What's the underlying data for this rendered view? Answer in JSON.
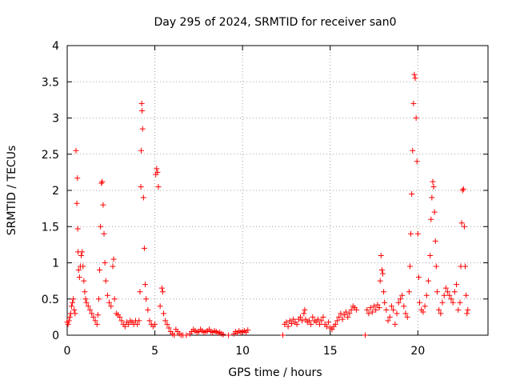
{
  "chart_data": {
    "type": "scatter",
    "title": "Day 295 of 2024, SRMTID for receiver san0",
    "xlabel": "GPS time / hours",
    "ylabel": "SRMTID / TECUs",
    "xlim": [
      0,
      24
    ],
    "ylim": [
      0,
      4
    ],
    "xticks": [
      0,
      5,
      10,
      15,
      20
    ],
    "xtick_labels": [
      "0",
      "5",
      "10",
      "15",
      "20"
    ],
    "yticks": [
      0,
      0.5,
      1,
      1.5,
      2,
      2.5,
      3,
      3.5,
      4
    ],
    "ytick_labels": [
      "0",
      "0.5",
      "1",
      "1.5",
      "2",
      "2.5",
      "3",
      "3.5",
      "4"
    ],
    "grid": true,
    "marker": "+",
    "color": "#ff0000",
    "series": [
      {
        "name": "SRMTID",
        "points": [
          [
            0.0,
            0.18
          ],
          [
            0.05,
            0.15
          ],
          [
            0.1,
            0.2
          ],
          [
            0.15,
            0.25
          ],
          [
            0.2,
            0.3
          ],
          [
            0.25,
            0.4
          ],
          [
            0.3,
            0.45
          ],
          [
            0.35,
            0.5
          ],
          [
            0.4,
            0.35
          ],
          [
            0.45,
            0.3
          ],
          [
            0.5,
            2.55
          ],
          [
            0.55,
            1.82
          ],
          [
            0.58,
            2.17
          ],
          [
            0.6,
            1.47
          ],
          [
            0.62,
            1.15
          ],
          [
            0.65,
            0.9
          ],
          [
            0.7,
            0.8
          ],
          [
            0.75,
            0.95
          ],
          [
            0.8,
            1.1
          ],
          [
            0.85,
            1.15
          ],
          [
            0.9,
            0.95
          ],
          [
            0.95,
            0.75
          ],
          [
            1.0,
            0.6
          ],
          [
            1.05,
            0.5
          ],
          [
            1.1,
            0.45
          ],
          [
            1.2,
            0.4
          ],
          [
            1.3,
            0.35
          ],
          [
            1.4,
            0.3
          ],
          [
            1.5,
            0.25
          ],
          [
            1.6,
            0.2
          ],
          [
            1.7,
            0.15
          ],
          [
            1.75,
            0.28
          ],
          [
            1.8,
            0.5
          ],
          [
            1.85,
            0.9
          ],
          [
            1.9,
            1.5
          ],
          [
            1.95,
            2.1
          ],
          [
            2.0,
            2.12
          ],
          [
            2.05,
            1.8
          ],
          [
            2.1,
            1.4
          ],
          [
            2.15,
            1.0
          ],
          [
            2.2,
            0.75
          ],
          [
            2.3,
            0.55
          ],
          [
            2.4,
            0.45
          ],
          [
            2.5,
            0.4
          ],
          [
            2.6,
            0.95
          ],
          [
            2.65,
            1.05
          ],
          [
            2.7,
            0.5
          ],
          [
            2.8,
            0.3
          ],
          [
            2.9,
            0.28
          ],
          [
            3.0,
            0.25
          ],
          [
            3.1,
            0.2
          ],
          [
            3.2,
            0.15
          ],
          [
            3.3,
            0.12
          ],
          [
            3.4,
            0.18
          ],
          [
            3.5,
            0.15
          ],
          [
            3.6,
            0.2
          ],
          [
            3.7,
            0.18
          ],
          [
            3.8,
            0.15
          ],
          [
            3.9,
            0.2
          ],
          [
            4.0,
            0.15
          ],
          [
            4.1,
            0.2
          ],
          [
            4.15,
            0.6
          ],
          [
            4.2,
            2.05
          ],
          [
            4.22,
            2.55
          ],
          [
            4.25,
            3.2
          ],
          [
            4.27,
            3.1
          ],
          [
            4.3,
            2.85
          ],
          [
            4.35,
            1.9
          ],
          [
            4.4,
            1.2
          ],
          [
            4.45,
            0.7
          ],
          [
            4.5,
            0.5
          ],
          [
            4.6,
            0.35
          ],
          [
            4.7,
            0.2
          ],
          [
            4.8,
            0.15
          ],
          [
            4.9,
            0.12
          ],
          [
            5.0,
            0.15
          ],
          [
            5.05,
            2.22
          ],
          [
            5.1,
            2.3
          ],
          [
            5.15,
            2.25
          ],
          [
            5.2,
            2.05
          ],
          [
            5.3,
            0.4
          ],
          [
            5.4,
            0.65
          ],
          [
            5.45,
            0.6
          ],
          [
            5.5,
            0.3
          ],
          [
            5.6,
            0.2
          ],
          [
            5.7,
            0.15
          ],
          [
            5.8,
            0.1
          ],
          [
            5.9,
            0.05
          ],
          [
            6.0,
            0.02
          ],
          [
            6.1,
            0.0
          ],
          [
            6.2,
            0.08
          ],
          [
            6.3,
            0.05
          ],
          [
            6.4,
            0.02
          ],
          [
            6.5,
            0.0
          ],
          [
            6.6,
            0.0
          ],
          [
            6.8,
            0.0
          ],
          [
            7.0,
            0.02
          ],
          [
            7.1,
            0.05
          ],
          [
            7.2,
            0.08
          ],
          [
            7.3,
            0.06
          ],
          [
            7.4,
            0.04
          ],
          [
            7.5,
            0.05
          ],
          [
            7.6,
            0.08
          ],
          [
            7.7,
            0.06
          ],
          [
            7.8,
            0.04
          ],
          [
            7.9,
            0.05
          ],
          [
            8.0,
            0.06
          ],
          [
            8.1,
            0.08
          ],
          [
            8.2,
            0.05
          ],
          [
            8.3,
            0.04
          ],
          [
            8.4,
            0.06
          ],
          [
            8.5,
            0.05
          ],
          [
            8.6,
            0.03
          ],
          [
            8.7,
            0.04
          ],
          [
            8.8,
            0.02
          ],
          [
            8.9,
            0.01
          ],
          [
            9.2,
            0.0
          ],
          [
            9.5,
            0.02
          ],
          [
            9.6,
            0.05
          ],
          [
            9.7,
            0.03
          ],
          [
            9.8,
            0.06
          ],
          [
            9.9,
            0.04
          ],
          [
            10.0,
            0.05
          ],
          [
            10.1,
            0.06
          ],
          [
            10.2,
            0.04
          ],
          [
            10.3,
            0.07
          ],
          [
            12.3,
            0.0
          ],
          [
            12.4,
            0.15
          ],
          [
            12.5,
            0.18
          ],
          [
            12.6,
            0.12
          ],
          [
            12.7,
            0.2
          ],
          [
            12.8,
            0.16
          ],
          [
            12.9,
            0.22
          ],
          [
            13.0,
            0.18
          ],
          [
            13.1,
            0.15
          ],
          [
            13.2,
            0.22
          ],
          [
            13.3,
            0.25
          ],
          [
            13.4,
            0.2
          ],
          [
            13.5,
            0.3
          ],
          [
            13.55,
            0.35
          ],
          [
            13.6,
            0.22
          ],
          [
            13.7,
            0.18
          ],
          [
            13.8,
            0.2
          ],
          [
            13.9,
            0.15
          ],
          [
            14.0,
            0.25
          ],
          [
            14.1,
            0.2
          ],
          [
            14.2,
            0.18
          ],
          [
            14.3,
            0.22
          ],
          [
            14.4,
            0.15
          ],
          [
            14.5,
            0.2
          ],
          [
            14.6,
            0.25
          ],
          [
            14.7,
            0.15
          ],
          [
            14.8,
            0.12
          ],
          [
            14.9,
            0.18
          ],
          [
            15.0,
            0.1
          ],
          [
            15.1,
            0.08
          ],
          [
            15.2,
            0.12
          ],
          [
            15.3,
            0.15
          ],
          [
            15.4,
            0.2
          ],
          [
            15.5,
            0.25
          ],
          [
            15.6,
            0.3
          ],
          [
            15.7,
            0.22
          ],
          [
            15.8,
            0.28
          ],
          [
            15.9,
            0.32
          ],
          [
            16.0,
            0.25
          ],
          [
            16.1,
            0.3
          ],
          [
            16.2,
            0.35
          ],
          [
            16.3,
            0.4
          ],
          [
            16.4,
            0.38
          ],
          [
            16.5,
            0.35
          ],
          [
            17.0,
            0.0
          ],
          [
            17.1,
            0.35
          ],
          [
            17.2,
            0.3
          ],
          [
            17.3,
            0.38
          ],
          [
            17.4,
            0.32
          ],
          [
            17.5,
            0.4
          ],
          [
            17.6,
            0.35
          ],
          [
            17.7,
            0.42
          ],
          [
            17.8,
            0.38
          ],
          [
            17.85,
            0.75
          ],
          [
            17.9,
            1.1
          ],
          [
            17.95,
            0.9
          ],
          [
            18.0,
            0.85
          ],
          [
            18.05,
            0.6
          ],
          [
            18.1,
            0.45
          ],
          [
            18.2,
            0.35
          ],
          [
            18.3,
            0.2
          ],
          [
            18.4,
            0.25
          ],
          [
            18.5,
            0.4
          ],
          [
            18.6,
            0.35
          ],
          [
            18.7,
            0.15
          ],
          [
            18.8,
            0.3
          ],
          [
            18.9,
            0.45
          ],
          [
            19.0,
            0.5
          ],
          [
            19.1,
            0.55
          ],
          [
            19.2,
            0.4
          ],
          [
            19.3,
            0.3
          ],
          [
            19.4,
            0.25
          ],
          [
            19.5,
            0.6
          ],
          [
            19.55,
            0.95
          ],
          [
            19.6,
            1.4
          ],
          [
            19.65,
            1.95
          ],
          [
            19.7,
            2.55
          ],
          [
            19.75,
            3.2
          ],
          [
            19.8,
            3.6
          ],
          [
            19.85,
            3.55
          ],
          [
            19.9,
            3.0
          ],
          [
            19.95,
            2.4
          ],
          [
            20.0,
            1.4
          ],
          [
            20.05,
            0.8
          ],
          [
            20.1,
            0.45
          ],
          [
            20.2,
            0.35
          ],
          [
            20.3,
            0.32
          ],
          [
            20.4,
            0.4
          ],
          [
            20.5,
            0.55
          ],
          [
            20.6,
            0.75
          ],
          [
            20.7,
            1.1
          ],
          [
            20.75,
            1.6
          ],
          [
            20.8,
            1.9
          ],
          [
            20.85,
            2.12
          ],
          [
            20.9,
            2.05
          ],
          [
            20.95,
            1.7
          ],
          [
            21.0,
            1.3
          ],
          [
            21.05,
            0.95
          ],
          [
            21.1,
            0.6
          ],
          [
            21.2,
            0.35
          ],
          [
            21.3,
            0.3
          ],
          [
            21.4,
            0.45
          ],
          [
            21.5,
            0.55
          ],
          [
            21.6,
            0.65
          ],
          [
            21.7,
            0.6
          ],
          [
            21.8,
            0.55
          ],
          [
            21.9,
            0.5
          ],
          [
            22.0,
            0.45
          ],
          [
            22.1,
            0.6
          ],
          [
            22.2,
            0.7
          ],
          [
            22.3,
            0.35
          ],
          [
            22.4,
            0.45
          ],
          [
            22.45,
            0.95
          ],
          [
            22.5,
            1.55
          ],
          [
            22.55,
            2.0
          ],
          [
            22.6,
            2.02
          ],
          [
            22.65,
            1.5
          ],
          [
            22.7,
            0.95
          ],
          [
            22.75,
            0.55
          ],
          [
            22.8,
            0.3
          ],
          [
            22.85,
            0.35
          ]
        ]
      }
    ]
  }
}
